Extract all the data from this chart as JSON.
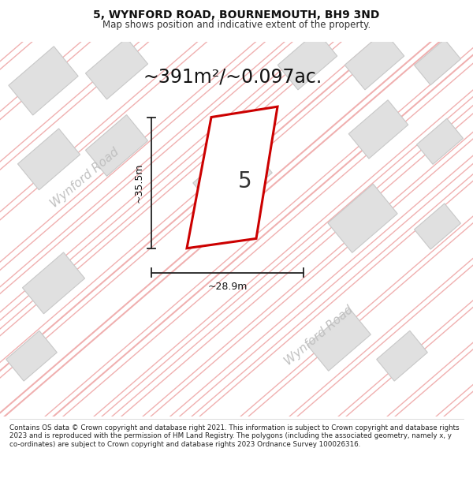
{
  "title_line1": "5, WYNFORD ROAD, BOURNEMOUTH, BH9 3ND",
  "title_line2": "Map shows position and indicative extent of the property.",
  "area_text": "~391m²/~0.097ac.",
  "label_number": "5",
  "dim_height": "~35.5m",
  "dim_width": "~28.9m",
  "road_label_upper": "Wynford Road",
  "road_label_lower": "Wynford Road",
  "footer_text": "Contains OS data © Crown copyright and database right 2021. This information is subject to Crown copyright and database rights 2023 and is reproduced with the permission of HM Land Registry. The polygons (including the associated geometry, namely x, y co-ordinates) are subject to Crown copyright and database rights 2023 Ordnance Survey 100026316.",
  "bg_color": "#ffffff",
  "map_bg": "#f7f7f7",
  "plot_fill": "#ffffff",
  "plot_edge": "#cc0000",
  "building_fill": "#e0e0e0",
  "building_edge": "#c8c8c8",
  "road_line_color": "#f0b0b0",
  "road_line_color2": "#d8d8d8",
  "dim_line_color": "#222222",
  "road_text_color": "#c0c0c0",
  "title_fontsize": 10,
  "subtitle_fontsize": 8.5,
  "area_fontsize": 17,
  "label_fontsize": 20,
  "dim_fontsize": 9,
  "road_fontsize": 11,
  "footer_fontsize": 6.3
}
